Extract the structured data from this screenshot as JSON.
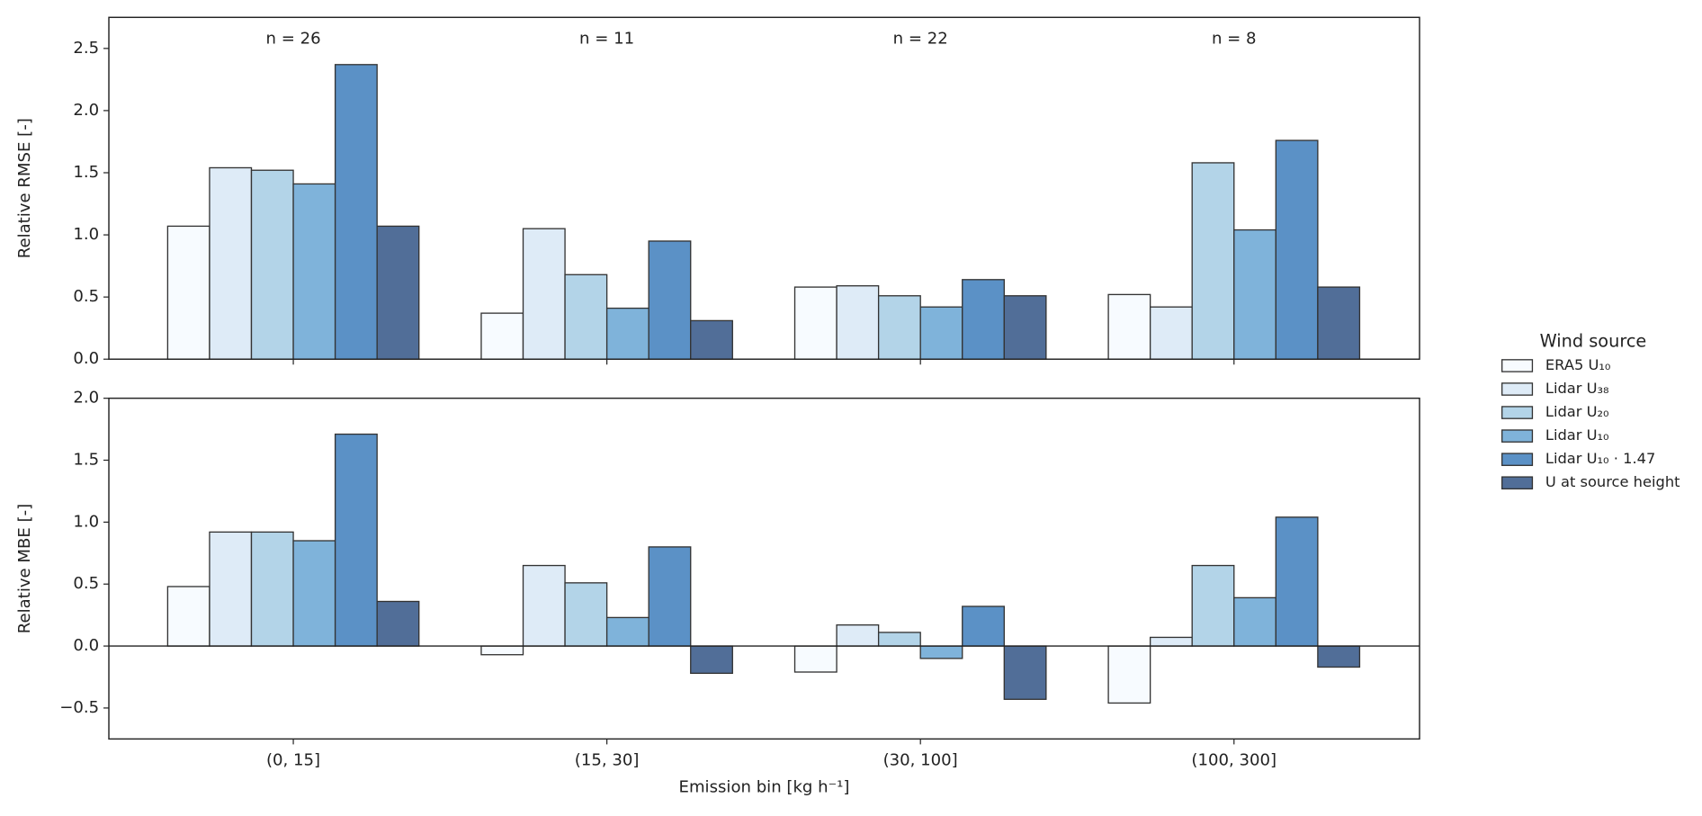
{
  "chart_data": [
    {
      "type": "bar",
      "ylabel": "Relative RMSE [-]",
      "annotations": [
        "n = 26",
        "n = 11",
        "n = 22",
        "n = 8"
      ],
      "ylim": [
        0,
        2.75
      ],
      "yticks": [
        {
          "value": 0,
          "label": "0.0"
        },
        {
          "value": 0.5,
          "label": "0.5"
        },
        {
          "value": 1,
          "label": "1.0"
        },
        {
          "value": 1.5,
          "label": "1.5"
        },
        {
          "value": 2,
          "label": "2.0"
        },
        {
          "value": 2.5,
          "label": "2.5"
        }
      ],
      "legend": "right",
      "legend_title": "Wind source",
      "series": [
        {
          "name": "ERA5 U₁₀",
          "color": "#f7fbff",
          "values": [
            1.07,
            0.37,
            0.58,
            0.52
          ]
        },
        {
          "name": "Lidar U₃₈",
          "color": "#deebf7",
          "values": [
            1.54,
            1.05,
            0.59,
            0.42
          ]
        },
        {
          "name": "Lidar U₂₀",
          "color": "#b3d4e8",
          "values": [
            1.52,
            0.68,
            0.51,
            1.58
          ]
        },
        {
          "name": "Lidar U₁₀",
          "color": "#7fb3da",
          "values": [
            1.41,
            0.41,
            0.42,
            1.04
          ]
        },
        {
          "name": "Lidar U₁₀ ·  1.47",
          "color": "#5b91c6",
          "values": [
            2.37,
            0.95,
            0.64,
            1.76
          ]
        },
        {
          "name": "U at source height",
          "color": "#516e98",
          "values": [
            1.07,
            0.31,
            0.51,
            0.58
          ]
        }
      ]
    },
    {
      "type": "bar",
      "ylabel": "Relative MBE [-]",
      "xlabel": "Emission bin [kg h⁻¹]",
      "categories": [
        "(0, 15]",
        "(15, 30]",
        "(30, 100]",
        "(100, 300]"
      ],
      "ylim": [
        -0.75,
        2.0
      ],
      "yticks": [
        {
          "value": -0.5,
          "label": "−0.5"
        },
        {
          "value": 0,
          "label": "0.0"
        },
        {
          "value": 0.5,
          "label": "0.5"
        },
        {
          "value": 1,
          "label": "1.0"
        },
        {
          "value": 1.5,
          "label": "1.5"
        },
        {
          "value": 2,
          "label": "2.0"
        }
      ],
      "series": [
        {
          "color": "#f7fbff",
          "values": [
            0.48,
            -0.07,
            -0.21,
            -0.46
          ]
        },
        {
          "color": "#deebf7",
          "values": [
            0.92,
            0.65,
            0.17,
            0.07
          ]
        },
        {
          "color": "#b3d4e8",
          "values": [
            0.92,
            0.51,
            0.11,
            0.65
          ]
        },
        {
          "color": "#7fb3da",
          "values": [
            0.85,
            0.23,
            -0.1,
            0.39
          ]
        },
        {
          "color": "#5b91c6",
          "values": [
            1.71,
            0.8,
            0.32,
            1.04
          ]
        },
        {
          "color": "#516e98",
          "values": [
            0.36,
            -0.22,
            -0.43,
            -0.17
          ]
        }
      ]
    }
  ]
}
